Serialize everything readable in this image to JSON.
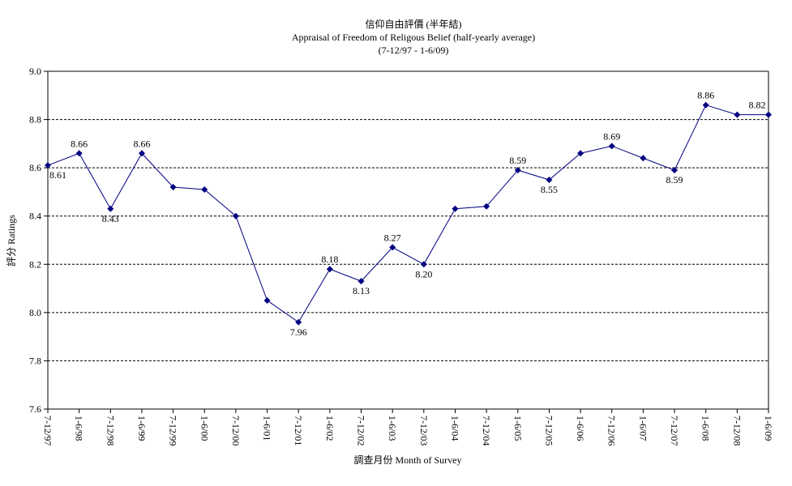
{
  "chart_data": {
    "type": "line",
    "title": "信仰自由評價 (半年結)",
    "subtitle": "Appraisal of Freedom of Religous Belief (half-yearly average)",
    "period": "(7-12/97 - 1-6/09)",
    "y_axis_label": "評分 Ratings",
    "x_axis_label": "調查月份 Month of Survey",
    "categories": [
      "7-12/97",
      "1-6/98",
      "7-12/98",
      "1-6/99",
      "7-12/99",
      "1-6/00",
      "7-12/00",
      "1-6/01",
      "7-12/01",
      "1-6/02",
      "7-12/02",
      "1-6/03",
      "7-12/03",
      "1-6/04",
      "7-12/04",
      "1-6/05",
      "7-12/05",
      "1-6/06",
      "7-12/06",
      "1-6/07",
      "7-12/07",
      "1-6/08",
      "7-12/08",
      "1-6/09"
    ],
    "series": [
      {
        "color": "#000080",
        "values": [
          8.61,
          8.66,
          8.43,
          8.66,
          8.52,
          8.51,
          8.4,
          8.05,
          7.96,
          8.18,
          8.13,
          8.27,
          8.2,
          8.43,
          8.44,
          8.59,
          8.55,
          8.66,
          8.69,
          8.64,
          8.59,
          8.86,
          8.82,
          8.82
        ],
        "value_labels": [
          "8.61",
          "8.66",
          "8.43",
          "8.66",
          null,
          null,
          null,
          null,
          "7.96",
          "8.18",
          "8.13",
          "8.27",
          "8.20",
          null,
          null,
          "8.59",
          "8.55",
          null,
          "8.69",
          null,
          "8.59",
          "8.86",
          null,
          "8.82"
        ]
      }
    ],
    "ylim": [
      7.6,
      9.0
    ],
    "yticks": [
      {
        "value": 7.6,
        "label": "7.6"
      },
      {
        "value": 7.8,
        "label": "7.8"
      },
      {
        "value": 8.0,
        "label": "8.0"
      },
      {
        "value": 8.2,
        "label": "8.2"
      },
      {
        "value": 8.4,
        "label": "8.4"
      },
      {
        "value": 8.6,
        "label": "8.6"
      },
      {
        "value": 8.8,
        "label": "8.8"
      },
      {
        "value": 9.0,
        "label": "9.0"
      }
    ],
    "grid": true
  }
}
